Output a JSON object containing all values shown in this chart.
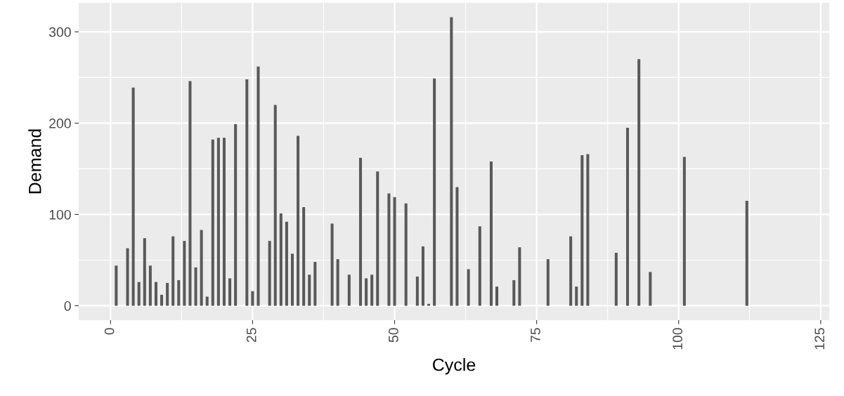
{
  "chart_data": {
    "type": "bar",
    "xlabel": "Cycle",
    "ylabel": "Demand",
    "color": "#595959",
    "x": [
      1,
      3,
      4,
      5,
      6,
      7,
      8,
      9,
      10,
      11,
      12,
      13,
      14,
      15,
      16,
      17,
      18,
      19,
      20,
      21,
      22,
      24,
      25,
      26,
      28,
      29,
      30,
      31,
      32,
      33,
      34,
      35,
      36,
      39,
      40,
      42,
      44,
      45,
      46,
      47,
      49,
      50,
      52,
      54,
      55,
      56,
      57,
      60,
      61,
      63,
      65,
      67,
      68,
      71,
      72,
      77,
      81,
      82,
      83,
      84,
      89,
      91,
      93,
      95,
      101,
      112
    ],
    "values": [
      44,
      63,
      239,
      26,
      74,
      44,
      26,
      12,
      25,
      76,
      28,
      71,
      246,
      42,
      83,
      10,
      182,
      184,
      184,
      30,
      199,
      248,
      16,
      262,
      71,
      220,
      101,
      92,
      57,
      186,
      108,
      34,
      48,
      90,
      51,
      34,
      162,
      30,
      34,
      147,
      123,
      119,
      112,
      32,
      65,
      2,
      249,
      316,
      130,
      40,
      87,
      158,
      21,
      28,
      64,
      51,
      76,
      21,
      165,
      166,
      58,
      195,
      270,
      37,
      163,
      115
    ],
    "xlim": [
      -5.6,
      126.5
    ],
    "ylim": [
      -15.8,
      331.8
    ],
    "xticks": [
      0,
      25,
      50,
      75,
      100,
      125
    ],
    "yticks": [
      0,
      100,
      200,
      300
    ],
    "grid": true
  }
}
